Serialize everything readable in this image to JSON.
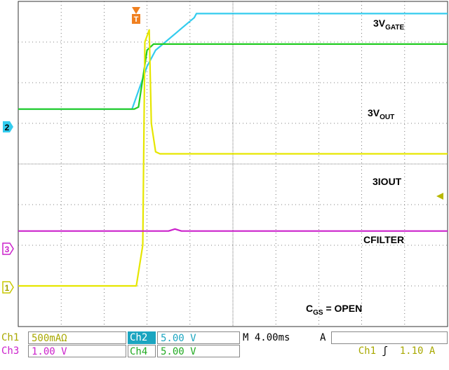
{
  "chart_data": {
    "type": "line",
    "title": "",
    "time_axis": {
      "divisions": 10,
      "per_div_ms": 4.0
    },
    "volt_axis": {
      "divisions": 8
    },
    "grid": true,
    "trigger": {
      "source": "Ch1",
      "slope": "rising",
      "level_V": 1.1,
      "marker": "T"
    },
    "series": [
      {
        "name": "3V_GATE",
        "channel": 2,
        "color": "#33ccee",
        "points_div": [
          [
            0,
            5.35
          ],
          [
            5.3,
            5.35
          ],
          [
            6.0,
            6.4
          ],
          [
            6.4,
            6.8
          ],
          [
            8.2,
            7.6
          ],
          [
            8.3,
            7.7
          ],
          [
            20,
            7.7
          ]
        ]
      },
      {
        "name": "3V_OUT",
        "channel": 2,
        "color": "#22cc22",
        "points_div": [
          [
            0,
            5.35
          ],
          [
            5.4,
            5.35
          ],
          [
            5.6,
            5.4
          ],
          [
            6.0,
            6.8
          ],
          [
            6.3,
            6.95
          ],
          [
            20,
            6.95
          ]
        ]
      },
      {
        "name": "3IOUT",
        "channel": 1,
        "color": "#e6e600",
        "points_div": [
          [
            0,
            1.0
          ],
          [
            5.5,
            1.0
          ],
          [
            5.8,
            2.0
          ],
          [
            5.9,
            7.0
          ],
          [
            6.1,
            7.3
          ],
          [
            6.2,
            5.0
          ],
          [
            6.4,
            4.3
          ],
          [
            6.6,
            4.25
          ],
          [
            20,
            4.25
          ]
        ]
      },
      {
        "name": "CFILTER",
        "channel": 3,
        "color": "#cc22cc",
        "points_div": [
          [
            0,
            2.35
          ],
          [
            7.0,
            2.35
          ],
          [
            7.3,
            2.4
          ],
          [
            7.6,
            2.35
          ],
          [
            20,
            2.35
          ]
        ]
      }
    ]
  },
  "labels": {
    "gate_main": "3V",
    "gate_sub": "GATE",
    "out_main": "3V",
    "out_sub": "OUT",
    "iout": "3IOUT",
    "cfilter": "CFILTER",
    "cgs_main": "C",
    "cgs_sub": "GS",
    "cgs_rest": " = OPEN"
  },
  "markers": {
    "ch2": "2",
    "ch3": "3",
    "ch1": "1",
    "trigger": "T"
  },
  "status": {
    "ch1": "Ch1",
    "ch1_scale": "500mAΩ",
    "ch2": "Ch2",
    "ch2_scale": "5.00 V",
    "ch3": "Ch3",
    "ch3_scale": "1.00 V",
    "ch4": "Ch4",
    "ch4_scale": "5.00 V",
    "timebase": "M 4.00ms",
    "acq": "A",
    "trig_src": "Ch1",
    "trig_slope": "ʃ",
    "trig_level": "1.10 A"
  },
  "colors": {
    "ch1": "#e6e600",
    "ch2": "#33ccee",
    "ch3": "#cc22cc",
    "ch4": "#22cc22",
    "trigger": "#f08020"
  }
}
